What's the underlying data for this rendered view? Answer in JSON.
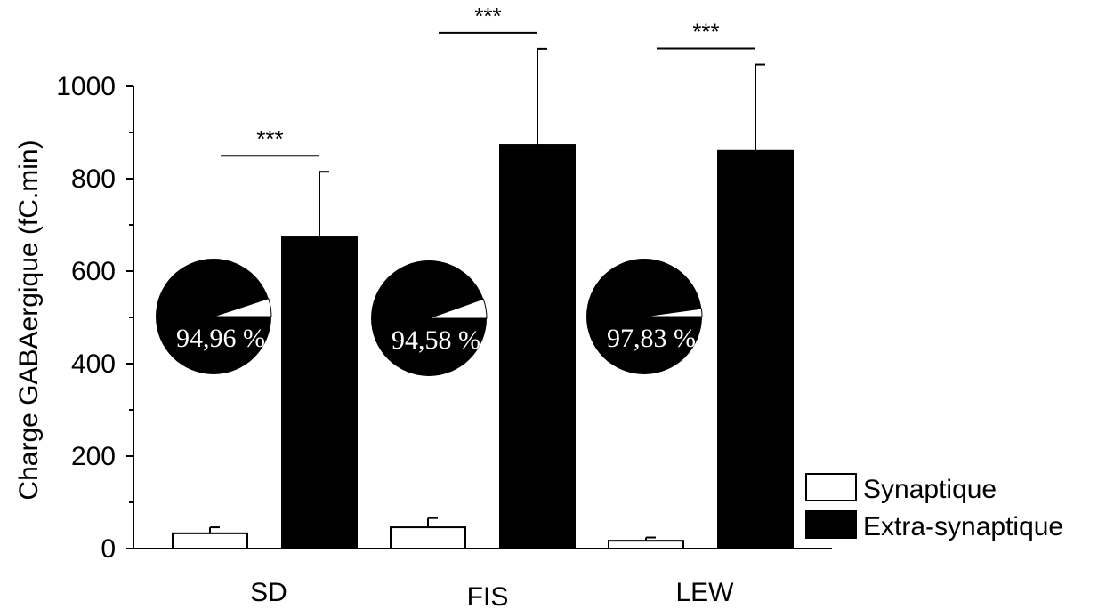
{
  "chart_data": {
    "type": "bar",
    "title": "",
    "xlabel": "",
    "ylabel": "Charge GABAergique (fC.min)",
    "ylim": [
      0,
      1000
    ],
    "yticks": [
      0,
      200,
      400,
      600,
      800,
      1000
    ],
    "ytick_labels": [
      "0",
      "200",
      "400",
      "600",
      "800",
      "1000"
    ],
    "grid": false,
    "legend_position": "bottom-right",
    "categories": [
      "SD",
      "FIS",
      "LEW"
    ],
    "series": [
      {
        "name": "Synaptique",
        "color": "#ffffff",
        "values": [
          33,
          46,
          17
        ],
        "errors": [
          13,
          20,
          7
        ]
      },
      {
        "name": "Extra-synaptique",
        "color": "#000000",
        "values": [
          673,
          873,
          860
        ],
        "errors": [
          142,
          208,
          187
        ]
      }
    ],
    "significance": [
      "***",
      "***",
      "***"
    ],
    "pies": [
      {
        "category": "SD",
        "extra_percent": 94.96,
        "label": "94,96 %"
      },
      {
        "category": "FIS",
        "extra_percent": 94.58,
        "label": "94,58 %"
      },
      {
        "category": "LEW",
        "extra_percent": 97.83,
        "label": "97,83 %"
      }
    ]
  }
}
